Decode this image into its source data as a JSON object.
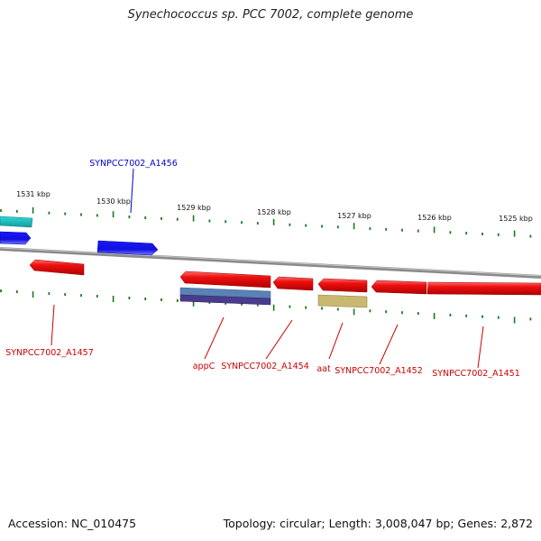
{
  "title": "Synechococcus sp. PCC 7002, complete genome",
  "footer": {
    "accession": "Accession: NC_010475",
    "summary": "Topology: circular; Length: 3,008,047 bp; Genes: 2,872"
  },
  "colors": {
    "backbone": "#808080",
    "tick": "#1a7a1a",
    "forward_gene": "#1010ee",
    "reverse_gene": "#ee1010",
    "teal_gene": "#20c8c8",
    "feature_blue": "#5a82b4",
    "feature_purple": "#4a3c8c",
    "feature_khaki": "#c8b870"
  },
  "kbp_labels": [
    "1531 kbp",
    "1530 kbp",
    "1529 kbp",
    "1528 kbp",
    "1527 kbp",
    "1526 kbp",
    "1525 kbp"
  ],
  "gene_labels": {
    "a1456": "SYNPCC7002_A1456",
    "a1457": "SYNPCC7002_A1457",
    "appc": "appC",
    "a1454": "SYNPCC7002_A1454",
    "aat": "aat",
    "a1452": "SYNPCC7002_A1452",
    "a1451": "SYNPCC7002_A1451"
  }
}
